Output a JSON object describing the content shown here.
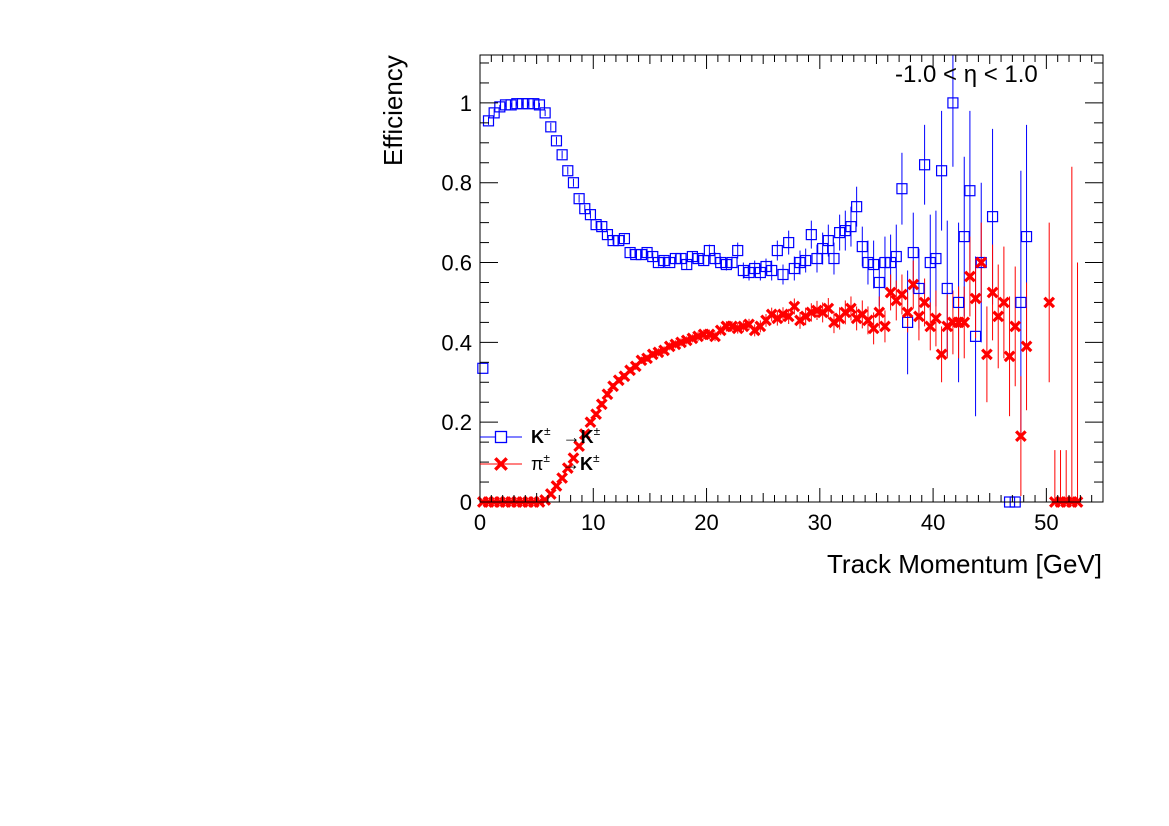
{
  "chart_data": {
    "type": "scatter",
    "annotation": "-1.0 < η < 1.0",
    "xlabel": "Track Momentum [GeV]",
    "ylabel": "Efficiency",
    "xlim": [
      0,
      55
    ],
    "ylim": [
      0,
      1.12
    ],
    "x_ticks": [
      {
        "value": 0,
        "label": "0"
      },
      {
        "value": 10,
        "label": "10"
      },
      {
        "value": 20,
        "label": "20"
      },
      {
        "value": 30,
        "label": "30"
      },
      {
        "value": 40,
        "label": "40"
      },
      {
        "value": 50,
        "label": "50"
      }
    ],
    "y_ticks": [
      {
        "value": 0,
        "label": "0"
      },
      {
        "value": 0.2,
        "label": "0.2"
      },
      {
        "value": 0.4,
        "label": "0.4"
      },
      {
        "value": 0.6,
        "label": "0.6"
      },
      {
        "value": 0.8,
        "label": "0.8"
      },
      {
        "value": 1,
        "label": "1"
      }
    ],
    "grid": false,
    "legend_position": "middle-left",
    "series": [
      {
        "name_main": "K",
        "name_sup": "±",
        "name_arrow": "→",
        "name_target": "K",
        "name_target_sup": "±",
        "color": "#0000ff",
        "marker": "open-square",
        "points": [
          [
            0.25,
            0.335,
            0
          ],
          [
            0.75,
            0.955,
            0.01
          ],
          [
            1.25,
            0.975,
            0.01
          ],
          [
            1.75,
            0.99,
            0.005
          ],
          [
            2.25,
            0.995,
            0.005
          ],
          [
            2.75,
            0.995,
            0.005
          ],
          [
            3.25,
            0.998,
            0.005
          ],
          [
            3.75,
            0.998,
            0.005
          ],
          [
            4.25,
            0.998,
            0.005
          ],
          [
            4.75,
            0.998,
            0.005
          ],
          [
            5.25,
            0.995,
            0.005
          ],
          [
            5.75,
            0.975,
            0.008
          ],
          [
            6.25,
            0.94,
            0.01
          ],
          [
            6.75,
            0.905,
            0.01
          ],
          [
            7.25,
            0.87,
            0.01
          ],
          [
            7.75,
            0.83,
            0.01
          ],
          [
            8.25,
            0.8,
            0.01
          ],
          [
            8.75,
            0.76,
            0.01
          ],
          [
            9.25,
            0.735,
            0.01
          ],
          [
            9.75,
            0.72,
            0.01
          ],
          [
            10.25,
            0.695,
            0.01
          ],
          [
            10.75,
            0.69,
            0.01
          ],
          [
            11.25,
            0.67,
            0.01
          ],
          [
            11.75,
            0.655,
            0.01
          ],
          [
            12.25,
            0.655,
            0.01
          ],
          [
            12.75,
            0.66,
            0.01
          ],
          [
            13.25,
            0.625,
            0.01
          ],
          [
            13.75,
            0.62,
            0.01
          ],
          [
            14.25,
            0.62,
            0.01
          ],
          [
            14.75,
            0.625,
            0.01
          ],
          [
            15.25,
            0.615,
            0.01
          ],
          [
            15.75,
            0.6,
            0.01
          ],
          [
            16.25,
            0.605,
            0.01
          ],
          [
            16.75,
            0.6,
            0.01
          ],
          [
            17.25,
            0.61,
            0.01
          ],
          [
            17.75,
            0.61,
            0.012
          ],
          [
            18.25,
            0.595,
            0.012
          ],
          [
            18.75,
            0.615,
            0.012
          ],
          [
            19.25,
            0.61,
            0.012
          ],
          [
            19.75,
            0.605,
            0.012
          ],
          [
            20.25,
            0.63,
            0.015
          ],
          [
            20.75,
            0.61,
            0.015
          ],
          [
            21.25,
            0.6,
            0.015
          ],
          [
            21.75,
            0.595,
            0.015
          ],
          [
            22.25,
            0.6,
            0.015
          ],
          [
            22.75,
            0.63,
            0.02
          ],
          [
            23.25,
            0.58,
            0.02
          ],
          [
            23.75,
            0.575,
            0.02
          ],
          [
            24.25,
            0.585,
            0.02
          ],
          [
            24.75,
            0.575,
            0.02
          ],
          [
            25.25,
            0.59,
            0.02
          ],
          [
            25.75,
            0.58,
            0.025
          ],
          [
            26.25,
            0.63,
            0.025
          ],
          [
            26.75,
            0.57,
            0.025
          ],
          [
            27.25,
            0.65,
            0.03
          ],
          [
            27.75,
            0.585,
            0.03
          ],
          [
            28.25,
            0.6,
            0.03
          ],
          [
            28.75,
            0.605,
            0.03
          ],
          [
            29.25,
            0.67,
            0.035
          ],
          [
            29.75,
            0.61,
            0.035
          ],
          [
            30.25,
            0.635,
            0.04
          ],
          [
            30.75,
            0.655,
            0.04
          ],
          [
            31.25,
            0.61,
            0.04
          ],
          [
            31.75,
            0.675,
            0.045
          ],
          [
            32.25,
            0.68,
            0.05
          ],
          [
            32.75,
            0.69,
            0.05
          ],
          [
            33.25,
            0.74,
            0.05
          ],
          [
            33.75,
            0.64,
            0.05
          ],
          [
            34.25,
            0.6,
            0.055
          ],
          [
            34.75,
            0.595,
            0.06
          ],
          [
            35.25,
            0.55,
            0.06
          ],
          [
            35.75,
            0.6,
            0.065
          ],
          [
            36.25,
            0.6,
            0.07
          ],
          [
            36.75,
            0.615,
            0.08
          ],
          [
            37.25,
            0.785,
            0.09
          ],
          [
            37.75,
            0.45,
            0.13
          ],
          [
            38.25,
            0.625,
            0.1
          ],
          [
            38.75,
            0.535,
            0.1
          ],
          [
            39.25,
            0.845,
            0.1
          ],
          [
            39.75,
            0.6,
            0.12
          ],
          [
            40.25,
            0.61,
            0.12
          ],
          [
            40.75,
            0.83,
            0.15
          ],
          [
            41.25,
            0.535,
            0.17
          ],
          [
            41.75,
            1.0,
            0.16
          ],
          [
            42.25,
            0.5,
            0.2
          ],
          [
            42.75,
            0.665,
            0.2
          ],
          [
            43.25,
            0.78,
            0.2
          ],
          [
            43.75,
            0.415,
            0.2
          ],
          [
            44.25,
            0.6,
            0.2
          ],
          [
            45.25,
            0.715,
            0.22
          ],
          [
            46.75,
            0,
            0
          ],
          [
            47.25,
            0,
            0
          ],
          [
            47.75,
            0.5,
            0.33
          ],
          [
            48.25,
            0.665,
            0.28
          ]
        ]
      },
      {
        "name_main": "π",
        "name_sup": "±",
        "name_arrow": "→",
        "name_target": "K",
        "name_target_sup": "±",
        "color": "#ff0000",
        "marker": "filled-x",
        "points": [
          [
            0.25,
            0,
            0
          ],
          [
            0.75,
            0,
            0
          ],
          [
            1.25,
            0,
            0
          ],
          [
            1.75,
            0,
            0
          ],
          [
            2.25,
            0,
            0
          ],
          [
            2.75,
            0,
            0
          ],
          [
            3.25,
            0,
            0
          ],
          [
            3.75,
            0,
            0
          ],
          [
            4.25,
            0,
            0
          ],
          [
            4.75,
            0,
            0
          ],
          [
            5.25,
            0,
            0
          ],
          [
            5.75,
            0.005,
            0.002
          ],
          [
            6.25,
            0.02,
            0.003
          ],
          [
            6.75,
            0.04,
            0.004
          ],
          [
            7.25,
            0.06,
            0.005
          ],
          [
            7.75,
            0.085,
            0.005
          ],
          [
            8.25,
            0.11,
            0.006
          ],
          [
            8.75,
            0.14,
            0.006
          ],
          [
            9.25,
            0.17,
            0.007
          ],
          [
            9.75,
            0.2,
            0.007
          ],
          [
            10.25,
            0.22,
            0.007
          ],
          [
            10.75,
            0.245,
            0.008
          ],
          [
            11.25,
            0.27,
            0.008
          ],
          [
            11.75,
            0.29,
            0.008
          ],
          [
            12.25,
            0.305,
            0.008
          ],
          [
            12.75,
            0.315,
            0.008
          ],
          [
            13.25,
            0.33,
            0.008
          ],
          [
            13.75,
            0.34,
            0.009
          ],
          [
            14.25,
            0.355,
            0.009
          ],
          [
            14.75,
            0.36,
            0.009
          ],
          [
            15.25,
            0.37,
            0.009
          ],
          [
            15.75,
            0.375,
            0.01
          ],
          [
            16.25,
            0.38,
            0.01
          ],
          [
            16.75,
            0.39,
            0.01
          ],
          [
            17.25,
            0.395,
            0.01
          ],
          [
            17.75,
            0.4,
            0.01
          ],
          [
            18.25,
            0.405,
            0.01
          ],
          [
            18.75,
            0.41,
            0.01
          ],
          [
            19.25,
            0.415,
            0.012
          ],
          [
            19.75,
            0.42,
            0.012
          ],
          [
            20.25,
            0.42,
            0.012
          ],
          [
            20.75,
            0.415,
            0.012
          ],
          [
            21.25,
            0.43,
            0.012
          ],
          [
            21.75,
            0.44,
            0.013
          ],
          [
            22.25,
            0.44,
            0.013
          ],
          [
            22.75,
            0.435,
            0.013
          ],
          [
            23.25,
            0.44,
            0.014
          ],
          [
            23.75,
            0.445,
            0.014
          ],
          [
            24.25,
            0.43,
            0.015
          ],
          [
            24.75,
            0.44,
            0.015
          ],
          [
            25.25,
            0.455,
            0.016
          ],
          [
            25.75,
            0.47,
            0.017
          ],
          [
            26.25,
            0.46,
            0.018
          ],
          [
            26.75,
            0.47,
            0.018
          ],
          [
            27.25,
            0.465,
            0.019
          ],
          [
            27.75,
            0.49,
            0.02
          ],
          [
            28.25,
            0.455,
            0.021
          ],
          [
            28.75,
            0.465,
            0.022
          ],
          [
            29.25,
            0.475,
            0.023
          ],
          [
            29.75,
            0.48,
            0.024
          ],
          [
            30.25,
            0.475,
            0.025
          ],
          [
            30.75,
            0.485,
            0.026
          ],
          [
            31.25,
            0.45,
            0.027
          ],
          [
            31.75,
            0.46,
            0.028
          ],
          [
            32.25,
            0.475,
            0.03
          ],
          [
            32.75,
            0.485,
            0.03
          ],
          [
            33.25,
            0.46,
            0.03
          ],
          [
            33.75,
            0.47,
            0.035
          ],
          [
            34.25,
            0.455,
            0.035
          ],
          [
            34.75,
            0.435,
            0.04
          ],
          [
            35.25,
            0.475,
            0.04
          ],
          [
            35.75,
            0.44,
            0.04
          ],
          [
            36.25,
            0.525,
            0.045
          ],
          [
            36.75,
            0.505,
            0.05
          ],
          [
            37.25,
            0.52,
            0.05
          ],
          [
            37.75,
            0.475,
            0.05
          ],
          [
            38.25,
            0.545,
            0.06
          ],
          [
            38.75,
            0.465,
            0.06
          ],
          [
            39.25,
            0.5,
            0.06
          ],
          [
            39.75,
            0.44,
            0.06
          ],
          [
            40.25,
            0.46,
            0.07
          ],
          [
            40.75,
            0.37,
            0.07
          ],
          [
            41.25,
            0.44,
            0.08
          ],
          [
            41.75,
            0.45,
            0.08
          ],
          [
            42.25,
            0.45,
            0.09
          ],
          [
            42.75,
            0.45,
            0.09
          ],
          [
            43.25,
            0.565,
            0.1
          ],
          [
            43.75,
            0.51,
            0.1
          ],
          [
            44.25,
            0.6,
            0.1
          ],
          [
            44.75,
            0.37,
            0.12
          ],
          [
            45.25,
            0.525,
            0.12
          ],
          [
            45.75,
            0.465,
            0.13
          ],
          [
            46.25,
            0.5,
            0.14
          ],
          [
            46.75,
            0.365,
            0.15
          ],
          [
            47.25,
            0.44,
            0.15
          ],
          [
            47.75,
            0.165,
            0.15
          ],
          [
            48.25,
            0.39,
            0.16
          ],
          [
            50.25,
            0.5,
            0.2
          ],
          [
            50.75,
            0,
            0.13
          ],
          [
            51.25,
            0,
            0.13
          ],
          [
            51.75,
            0,
            0.13
          ],
          [
            52.25,
            0,
            0.84
          ],
          [
            52.75,
            0,
            0.6
          ]
        ]
      }
    ]
  }
}
